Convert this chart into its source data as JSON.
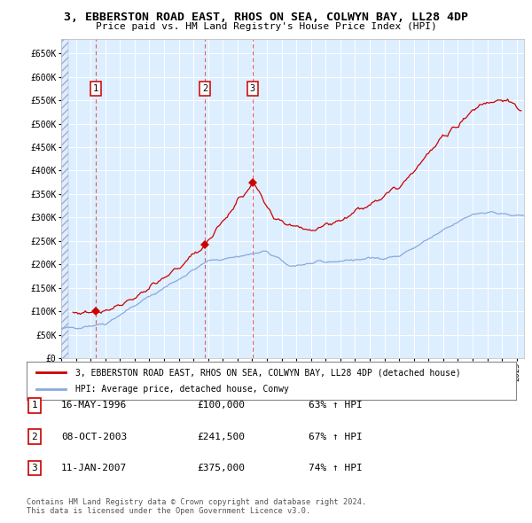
{
  "title": "3, EBBERSTON ROAD EAST, RHOS ON SEA, COLWYN BAY, LL28 4DP",
  "subtitle": "Price paid vs. HM Land Registry's House Price Index (HPI)",
  "purchases": [
    {
      "label": "1",
      "date_x": 1996.37,
      "price": 100000,
      "info": "16-MAY-1996",
      "amount": "£100,000",
      "hpi_pct": "63% ↑ HPI"
    },
    {
      "label": "2",
      "date_x": 2003.77,
      "price": 241500,
      "info": "08-OCT-2003",
      "amount": "£241,500",
      "hpi_pct": "67% ↑ HPI"
    },
    {
      "label": "3",
      "date_x": 2007.03,
      "price": 375000,
      "info": "11-JAN-2007",
      "amount": "£375,000",
      "hpi_pct": "74% ↑ HPI"
    }
  ],
  "ylim": [
    0,
    680000
  ],
  "xlim": [
    1994.0,
    2025.5
  ],
  "yticks": [
    0,
    50000,
    100000,
    150000,
    200000,
    250000,
    300000,
    350000,
    400000,
    450000,
    500000,
    550000,
    600000,
    650000
  ],
  "red_line_color": "#cc0000",
  "blue_line_color": "#88aadd",
  "bg_color": "#ddeeff",
  "grid_color": "#ffffff",
  "vline_color": "#dd4444",
  "legend_label_red": "3, EBBERSTON ROAD EAST, RHOS ON SEA, COLWYN BAY, LL28 4DP (detached house)",
  "legend_label_blue": "HPI: Average price, detached house, Conwy",
  "footer": "Contains HM Land Registry data © Crown copyright and database right 2024.\nThis data is licensed under the Open Government Licence v3.0."
}
